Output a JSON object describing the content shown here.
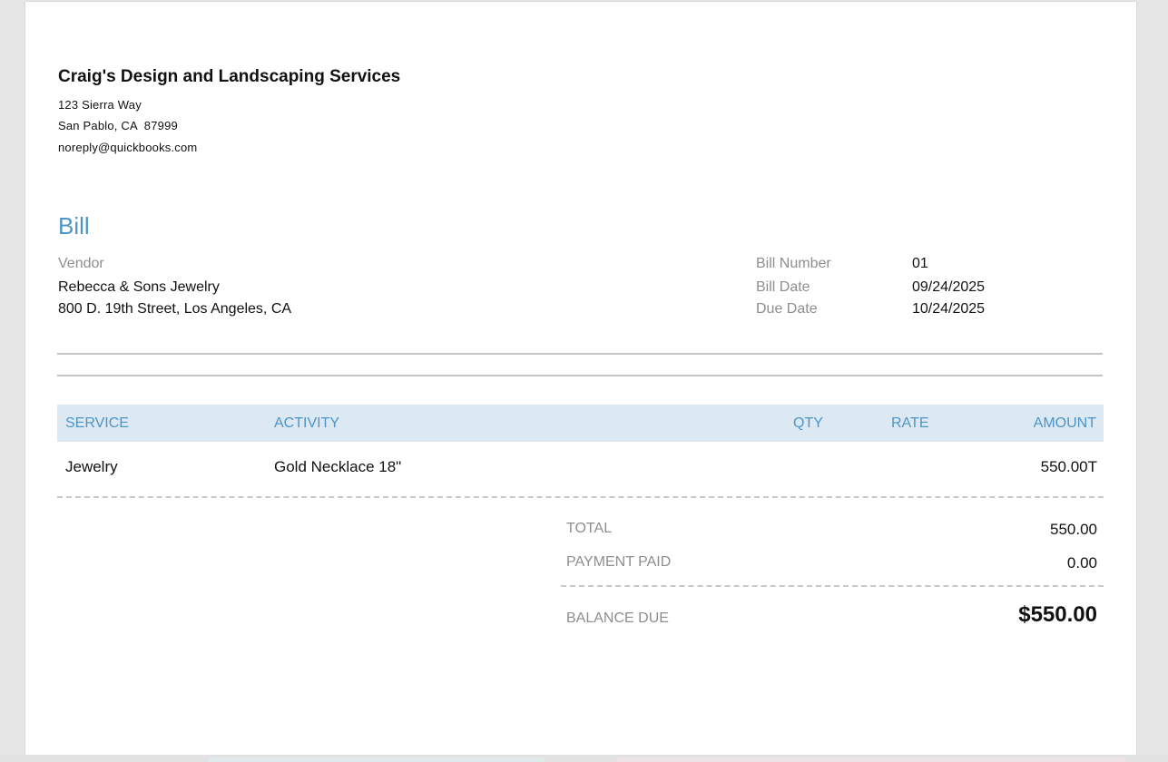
{
  "company": {
    "name": "Craig's Design and Landscaping Services",
    "address_line1": "123 Sierra Way",
    "address_line2": "San Pablo, CA  87999",
    "email": "noreply@quickbooks.com"
  },
  "document": {
    "title": "Bill",
    "accent_color": "#4d94c7"
  },
  "vendor": {
    "label": "Vendor",
    "name": "Rebecca & Sons Jewelry",
    "address": "800 D. 19th Street, Los Angeles, CA"
  },
  "bill_info": {
    "number_label": "Bill Number",
    "number": "01",
    "date_label": "Bill Date",
    "date": "09/24/2025",
    "due_label": "Due Date",
    "due": "10/24/2025"
  },
  "table": {
    "headers": {
      "service": "SERVICE",
      "activity": "ACTIVITY",
      "qty": "QTY",
      "rate": "RATE",
      "amount": "AMOUNT"
    },
    "rows": [
      {
        "service": "Jewelry",
        "activity": "Gold Necklace 18\"",
        "qty": "",
        "rate": "",
        "amount": "550.00T"
      }
    ]
  },
  "summary": {
    "total_label": "TOTAL",
    "total": "550.00",
    "paid_label": "PAYMENT PAID",
    "paid": "0.00",
    "balance_label": "BALANCE DUE",
    "balance": "$550.00"
  }
}
